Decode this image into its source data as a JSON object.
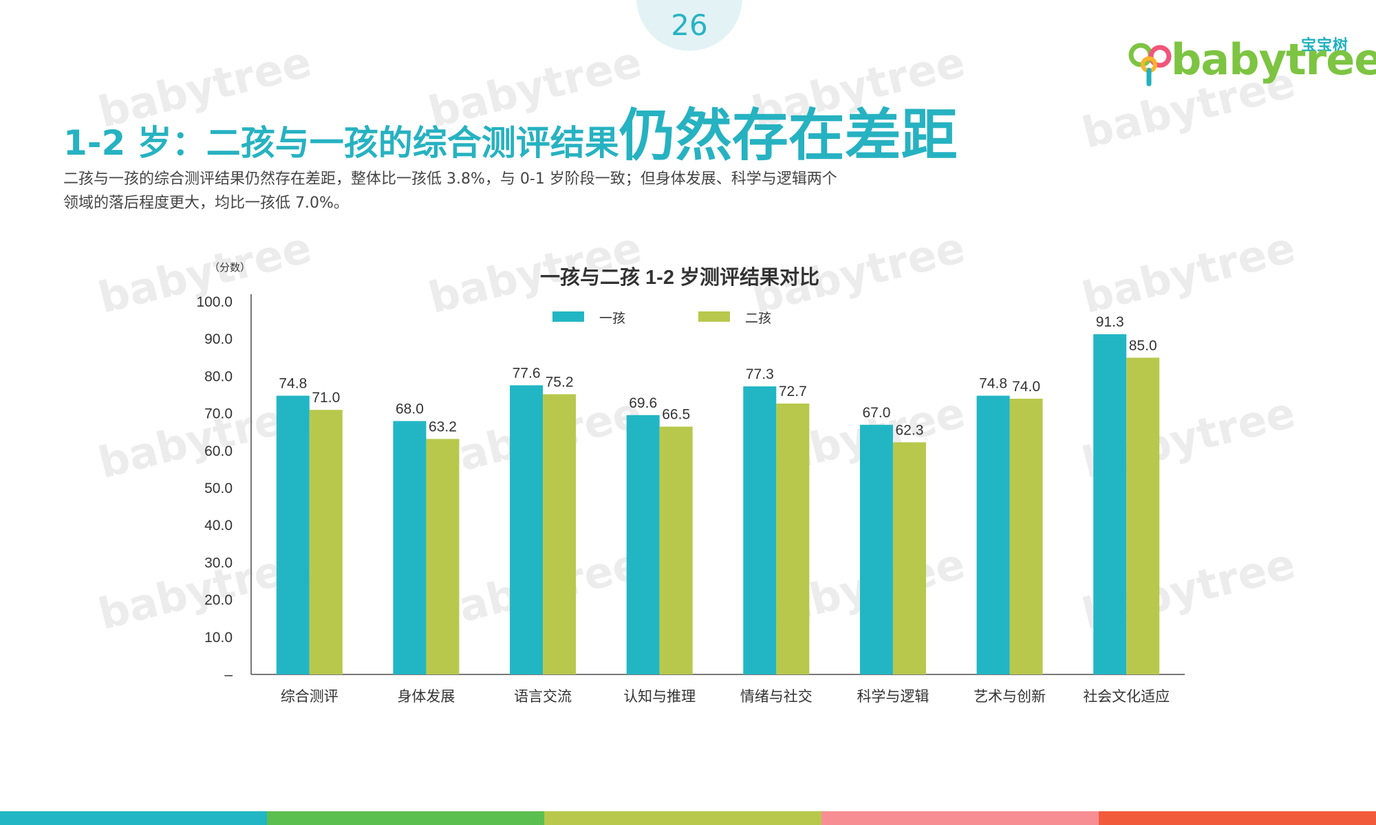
{
  "page_number": "26",
  "logo": {
    "cn": "宝宝树",
    "en": "babytree"
  },
  "title_small": "1-2 岁：二孩与一孩的综合测评结果",
  "title_large": "仍然存在差距",
  "subtitle_line1": "二孩与一孩的综合测评结果仍然存在差距，整体比一孩低 3.8%，与 0-1 岁阶段一致；但身体发展、科学与逻辑两个",
  "subtitle_line2": "领域的落后程度更大，均比一孩低 7.0%。",
  "colors": {
    "brand": "#26b2c1",
    "series_one": "#22b6c4",
    "series_two": "#b8c84c",
    "stripes": [
      "#22b6c4",
      "#5bbf4f",
      "#b8c84c",
      "#f78e93",
      "#f25a3c"
    ]
  },
  "chart_data": {
    "type": "bar",
    "title": "一孩与二孩 1-2 岁测评结果对比",
    "ylabel": "（分数）",
    "ylim": [
      0,
      100
    ],
    "yticks": [
      "–",
      "10.0",
      "20.0",
      "30.0",
      "40.0",
      "50.0",
      "60.0",
      "70.0",
      "80.0",
      "90.0",
      "100.0"
    ],
    "categories": [
      "综合测评",
      "身体发展",
      "语言交流",
      "认知与推理",
      "情绪与社交",
      "科学与逻辑",
      "艺术与创新",
      "社会文化适应"
    ],
    "series": [
      {
        "name": "一孩",
        "values": [
          74.8,
          68.0,
          77.6,
          69.6,
          77.3,
          67.0,
          74.8,
          91.3
        ],
        "labels": [
          "74.8",
          "68.0",
          "77.6",
          "69.6",
          "77.3",
          "67.0",
          "74.8",
          "91.3"
        ]
      },
      {
        "name": "二孩",
        "values": [
          71.0,
          63.2,
          75.2,
          66.5,
          72.7,
          62.3,
          74.0,
          85.0
        ],
        "labels": [
          "71.0",
          "63.2",
          "75.2",
          "66.5",
          "72.7",
          "62.3",
          "74.0",
          "85.0"
        ]
      }
    ],
    "legend_position": "top-center",
    "grid": false
  }
}
